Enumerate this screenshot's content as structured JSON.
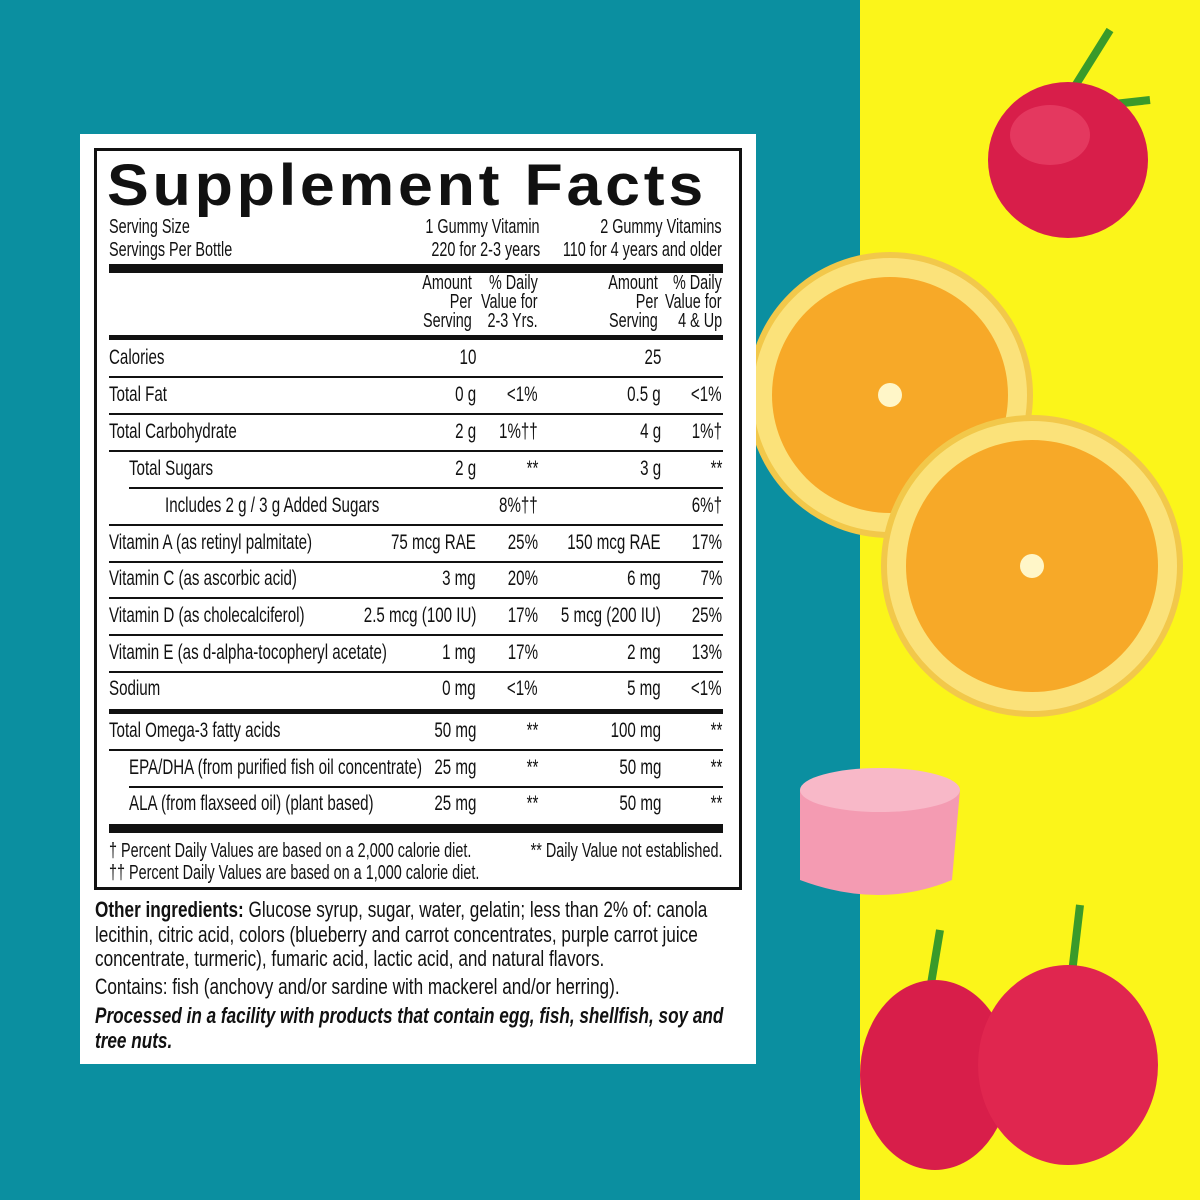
{
  "colors": {
    "background_left": "#0b8fa0",
    "background_right": "#fbf51a"
  },
  "title": "Supplement Facts",
  "serving": {
    "labels": [
      "Serving Size",
      "Servings Per Bottle"
    ],
    "col1": [
      "1 Gummy Vitamin",
      "220 for 2-3 years"
    ],
    "col2": [
      "2 Gummy Vitamins",
      "110 for 4 years and older"
    ]
  },
  "headers": {
    "amount1": [
      "Amount",
      "Per",
      "Serving"
    ],
    "dv1": [
      "% Daily",
      "Value for",
      "2-3 Yrs."
    ],
    "amount2": [
      "Amount",
      "Per",
      "Serving"
    ],
    "dv2": [
      "% Daily",
      "Value for",
      "4 & Up"
    ]
  },
  "rows": [
    {
      "name": "Calories",
      "indent": 0,
      "amt1": "10",
      "dv1": "",
      "amt2": "25",
      "dv2": ""
    },
    {
      "name": "Total Fat",
      "indent": 0,
      "amt1": "0 g",
      "dv1": "<1%",
      "amt2": "0.5 g",
      "dv2": "<1%"
    },
    {
      "name": "Total Carbohydrate",
      "indent": 0,
      "amt1": "2 g",
      "dv1": "1%††",
      "amt2": "4 g",
      "dv2": "1%†"
    },
    {
      "name": "Total Sugars",
      "indent": 1,
      "amt1": "2 g",
      "dv1": "**",
      "amt2": "3 g",
      "dv2": "**"
    },
    {
      "name": "Includes 2 g / 3 g Added Sugars",
      "indent": 2,
      "amt1": "",
      "dv1": "8%††",
      "amt2": "",
      "dv2": "6%†"
    },
    {
      "name": "Vitamin A (as retinyl palmitate)",
      "indent": 0,
      "amt1": "75 mcg RAE",
      "dv1": "25%",
      "amt2": "150 mcg RAE",
      "dv2": "17%"
    },
    {
      "name": "Vitamin C (as ascorbic acid)",
      "indent": 0,
      "amt1": "3 mg",
      "dv1": "20%",
      "amt2": "6 mg",
      "dv2": "7%"
    },
    {
      "name": "Vitamin D (as cholecalciferol)",
      "indent": 0,
      "amt1": "2.5 mcg (100 IU)",
      "dv1": "17%",
      "amt2": "5 mcg (200 IU)",
      "dv2": "25%"
    },
    {
      "name": "Vitamin E (as d-alpha-tocopheryl acetate)",
      "indent": 0,
      "amt1": "1 mg",
      "dv1": "17%",
      "amt2": "2 mg",
      "dv2": "13%"
    },
    {
      "name": "Sodium",
      "indent": 0,
      "amt1": "0 mg",
      "dv1": "<1%",
      "amt2": "5 mg",
      "dv2": "<1%"
    },
    {
      "name": "Total Omega-3 fatty acids",
      "indent": 0,
      "amt1": "50 mg",
      "dv1": "**",
      "amt2": "100 mg",
      "dv2": "**"
    },
    {
      "name": "EPA/DHA (from purified fish oil concentrate)",
      "indent": 1,
      "amt1": "25 mg",
      "dv1": "**",
      "amt2": "50 mg",
      "dv2": "**"
    },
    {
      "name": "ALA (from flaxseed oil) (plant based)",
      "indent": 1,
      "amt1": "25 mg",
      "dv1": "**",
      "amt2": "50 mg",
      "dv2": "**"
    }
  ],
  "footnotes": {
    "dagger": "† Percent Daily Values are based on a 2,000 calorie diet.",
    "double_dagger": "†† Percent Daily Values are based on a 1,000 calorie diet.",
    "not_established": "** Daily Value not established."
  },
  "other_ingredients": {
    "label": "Other ingredients:",
    "text": " Glucose syrup, sugar, water, gelatin; less than 2% of: canola lecithin, citric acid, colors (blueberry and carrot concentrates, purple carrot juice concentrate, turmeric), fumaric acid, lactic acid, and natural flavors."
  },
  "contains": "Contains: fish (anchovy and/or sardine with mackerel and/or herring).",
  "allergen": "Processed in a facility with products that contain egg, fish, shellfish, soy and tree nuts."
}
